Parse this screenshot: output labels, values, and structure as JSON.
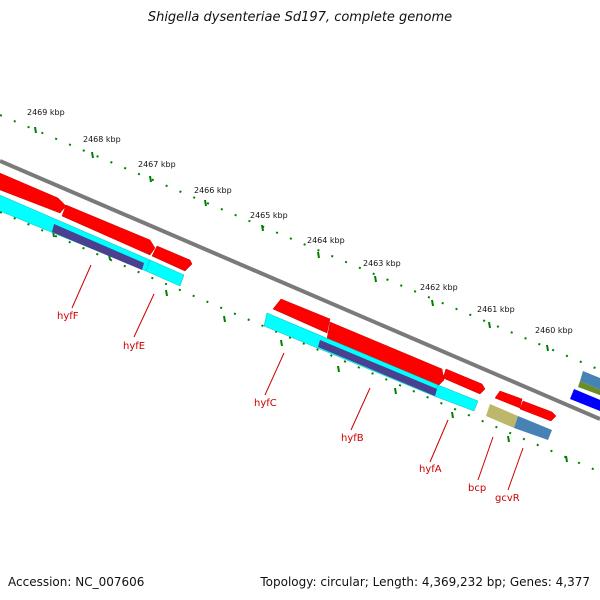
{
  "title": "Shigella dysenteriae Sd197, complete genome",
  "footer": {
    "accession": "Accession: NC_007606",
    "topology": "Topology: circular; Length: 4,369,232 bp; Genes: 4,377"
  },
  "ruler": {
    "ticks": [
      {
        "id": "2469",
        "label": "2469 kbp"
      },
      {
        "id": "2468",
        "label": "2468 kbp"
      },
      {
        "id": "2467",
        "label": "2467 kbp"
      },
      {
        "id": "2466",
        "label": "2466 kbp"
      },
      {
        "id": "2465",
        "label": "2465 kbp"
      },
      {
        "id": "2464",
        "label": "2464 kbp"
      },
      {
        "id": "2463",
        "label": "2463 kbp"
      },
      {
        "id": "2462",
        "label": "2462 kbp"
      },
      {
        "id": "2461",
        "label": "2461 kbp"
      },
      {
        "id": "2460",
        "label": "2460 kbp"
      }
    ]
  },
  "genes": [
    {
      "id": "hyfF",
      "label": "hyfF"
    },
    {
      "id": "hyfE",
      "label": "hyfE"
    },
    {
      "id": "hyfC",
      "label": "hyfC"
    },
    {
      "id": "hyfB",
      "label": "hyfB"
    },
    {
      "id": "hyfA",
      "label": "hyfA"
    },
    {
      "id": "bcp",
      "label": "bcp"
    },
    {
      "id": "gcvR",
      "label": "gcvR"
    }
  ],
  "colors": {
    "backbone": "#808080",
    "cds": "#ff0000",
    "orf_cyan": "#00ffff",
    "cog_purple": "#4b3f8f",
    "cog_khaki": "#bdb76b",
    "cog_steelblue": "#4682b4",
    "cog_blue": "#0000ff",
    "cog_olive": "#6b8e23",
    "ruler_ticks": "#008000",
    "gene_label": "#cc0000"
  }
}
